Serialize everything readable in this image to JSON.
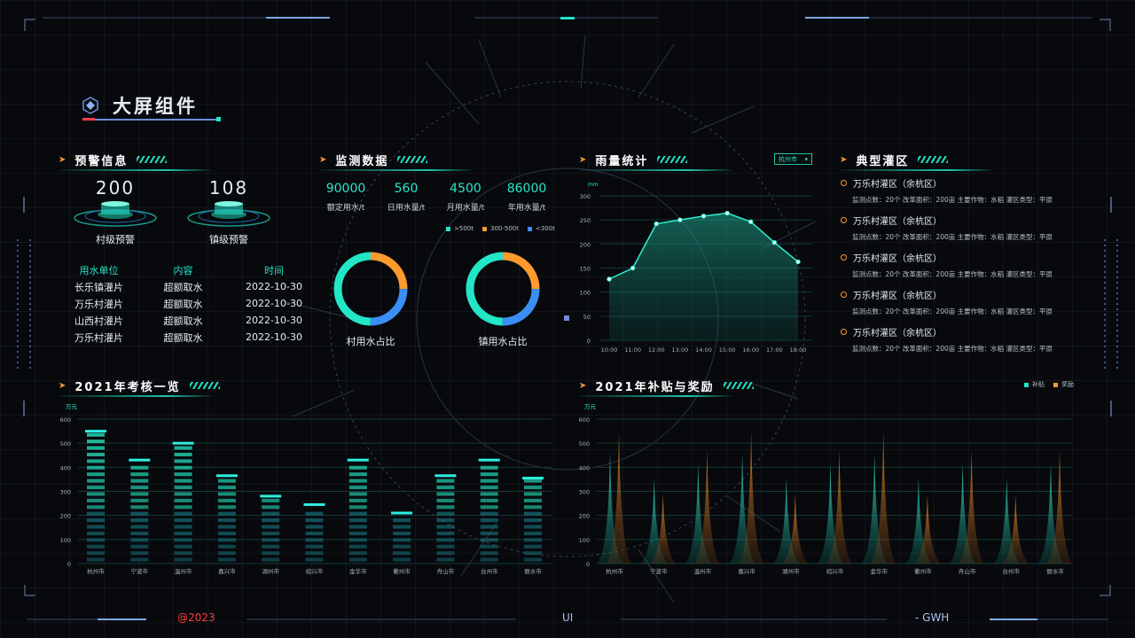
{
  "page_title": "大屏组件",
  "colors": {
    "cyan": "#22e6c6",
    "orange": "#ff9a2e",
    "blue": "#3b8ef5",
    "red": "#ff3b3b"
  },
  "warning": {
    "title": "预警信息",
    "village": {
      "value": "200",
      "label": "村级预警"
    },
    "town": {
      "value": "108",
      "label": "镇级预警"
    },
    "columns": [
      "用水单位",
      "内容",
      "时间"
    ],
    "rows": [
      [
        "长乐镇灌片",
        "超额取水",
        "2022-10-30"
      ],
      [
        "万乐村灌片",
        "超额取水",
        "2022-10-30"
      ],
      [
        "山西村灌片",
        "超额取水",
        "2022-10-30"
      ],
      [
        "万乐村灌片",
        "超额取水",
        "2022-10-30"
      ]
    ]
  },
  "monitor": {
    "title": "监测数据",
    "stats": [
      {
        "value": "90000",
        "label": "额定用水/t"
      },
      {
        "value": "560",
        "label": "日用水量/t"
      },
      {
        "value": "4500",
        "label": "月用水量/t"
      },
      {
        "value": "86000",
        "label": "年用水量/t"
      }
    ],
    "legend": [
      ">500t",
      "300-500t",
      "<300t"
    ],
    "donuts": [
      {
        "label": "村用水占比",
        "values": [
          50,
          25,
          25
        ]
      },
      {
        "label": "镇用水占比",
        "values": [
          50,
          25,
          25
        ]
      }
    ]
  },
  "rain": {
    "title": "雨量统计",
    "dropdown": "杭州市"
  },
  "irrigation": {
    "title": "典型灌区",
    "items": [
      {
        "name": "万乐村灌区（余杭区）",
        "detail": "监测点数：20个  改革面积：200亩  主要作物：水稻   灌区类型：平原"
      },
      {
        "name": "万乐村灌区（余杭区）",
        "detail": "监测点数：20个  改革面积：200亩  主要作物：水稻   灌区类型：平原"
      },
      {
        "name": "万乐村灌区（余杭区）",
        "detail": "监测点数：20个  改革面积：200亩  主要作物：水稻   灌区类型：平原"
      },
      {
        "name": "万乐村灌区（余杭区）",
        "detail": "监测点数：20个  改革面积：200亩  主要作物：水稻   灌区类型：平原"
      },
      {
        "name": "万乐村灌区（余杭区）",
        "detail": "监测点数：20个  改革面积：200亩  主要作物：水稻   灌区类型：平原"
      }
    ]
  },
  "assess": {
    "title": "2021年考核一览"
  },
  "subsidy": {
    "title": "2021年补贴与奖励"
  },
  "footer": {
    "year": "@2023",
    "center": "UI",
    "right": "- GWH"
  },
  "chart_data": [
    {
      "type": "line",
      "id": "rain",
      "ylabel": "mm",
      "x": [
        "10:00",
        "11:00",
        "12:00",
        "13:00",
        "14:00",
        "15:00",
        "16:00",
        "17:00",
        "18:00"
      ],
      "values": [
        127,
        150,
        242,
        250,
        258,
        264,
        246,
        203,
        163
      ],
      "ylim": [
        0,
        300
      ],
      "yticks": [
        0,
        50,
        100,
        150,
        200,
        250,
        300
      ],
      "grid": true
    },
    {
      "type": "bar",
      "id": "assess",
      "ylabel": "万元",
      "categories": [
        "杭州市",
        "宁波市",
        "温州市",
        "嘉兴市",
        "湖州市",
        "绍兴市",
        "金华市",
        "衢州市",
        "舟山市",
        "台州市",
        "丽水市"
      ],
      "values": [
        550,
        430,
        500,
        365,
        280,
        245,
        430,
        210,
        365,
        430,
        355
      ],
      "ylim": [
        0,
        600
      ],
      "yticks": [
        0,
        100,
        200,
        300,
        400,
        500,
        600
      ],
      "grid": true
    },
    {
      "type": "bar",
      "id": "subsidy",
      "ylabel": "万元",
      "categories": [
        "杭州市",
        "宁波市",
        "温州市",
        "嘉兴市",
        "湖州市",
        "绍兴市",
        "金华市",
        "衢州市",
        "舟山市",
        "台州市",
        "丽水市"
      ],
      "series": [
        {
          "name": "补贴",
          "values": [
            460,
            355,
            415,
            455,
            355,
            415,
            455,
            355,
            415,
            355,
            415
          ]
        },
        {
          "name": "奖励",
          "values": [
            550,
            290,
            470,
            545,
            285,
            470,
            545,
            285,
            470,
            285,
            470
          ]
        }
      ],
      "ylim": [
        0,
        600
      ],
      "yticks": [
        0,
        100,
        200,
        300,
        400,
        500,
        600
      ],
      "legend": "top-right",
      "grid": true
    }
  ]
}
